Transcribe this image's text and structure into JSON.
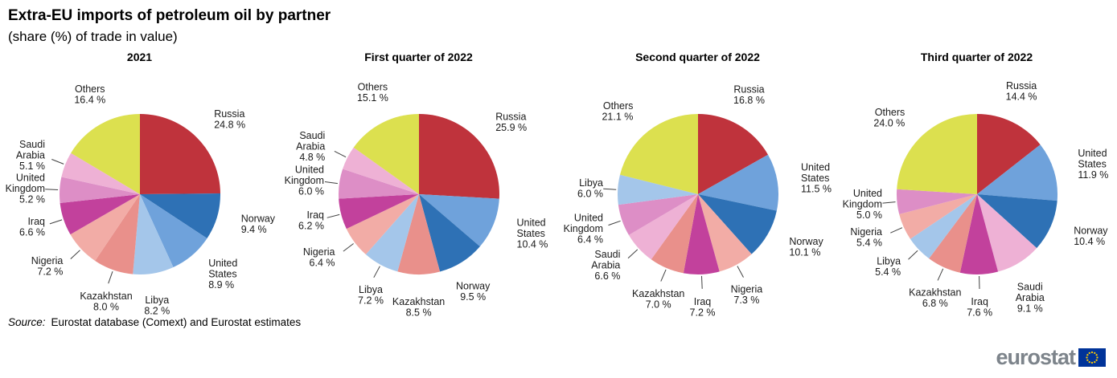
{
  "header": {
    "title": "Extra-EU imports of petroleum oil by partner",
    "subtitle": "(share (%) of trade in value)"
  },
  "footer": {
    "source_label": "Source:",
    "source_text": "Eurostat database (Comext) and Eurostat estimates"
  },
  "logo": {
    "text": "eurostat",
    "flag_blue": "#003399",
    "flag_star_yellow": "#ffcc00",
    "text_color": "#7d848b"
  },
  "colors": {
    "Russia": "#bf333c",
    "Norway": "#2e71b5",
    "United States": "#6fa2db",
    "Libya": "#a4c6ea",
    "Kazakhstan": "#e9908b",
    "Nigeria": "#f2aca6",
    "Iraq": "#c2419c",
    "United Kingdom": "#dd8ec6",
    "Saudi Arabia": "#eeb1d5",
    "Others": "#dce04f"
  },
  "chart_data": [
    {
      "type": "pie",
      "title": "2021",
      "unit": "%",
      "start_angle": "12 o'clock",
      "direction": "clockwise",
      "legend": "none",
      "labels": [
        "Russia",
        "Norway",
        "United States",
        "Libya",
        "Kazakhstan",
        "Nigeria",
        "Iraq",
        "United Kingdom",
        "Saudi Arabia",
        "Others"
      ],
      "values": [
        24.8,
        9.4,
        8.9,
        8.2,
        8.0,
        7.2,
        6.6,
        5.2,
        5.1,
        16.4
      ]
    },
    {
      "type": "pie",
      "title": "First quarter of 2022",
      "unit": "%",
      "start_angle": "12 o'clock",
      "direction": "clockwise",
      "legend": "none",
      "labels": [
        "Russia",
        "United States",
        "Norway",
        "Kazakhstan",
        "Libya",
        "Nigeria",
        "Iraq",
        "United Kingdom",
        "Saudi Arabia",
        "Others"
      ],
      "values": [
        25.9,
        10.4,
        9.5,
        8.5,
        7.2,
        6.4,
        6.2,
        6.0,
        4.8,
        15.1
      ]
    },
    {
      "type": "pie",
      "title": "Second quarter of 2022",
      "unit": "%",
      "start_angle": "12 o'clock",
      "direction": "clockwise",
      "legend": "none",
      "labels": [
        "Russia",
        "United States",
        "Norway",
        "Nigeria",
        "Iraq",
        "Kazakhstan",
        "Saudi Arabia",
        "United Kingdom",
        "Libya",
        "Others"
      ],
      "values": [
        16.8,
        11.5,
        10.1,
        7.3,
        7.2,
        7.0,
        6.6,
        6.4,
        6.0,
        21.1
      ]
    },
    {
      "type": "pie",
      "title": "Third quarter of 2022",
      "unit": "%",
      "start_angle": "12 o'clock",
      "direction": "clockwise",
      "legend": "none",
      "labels": [
        "Russia",
        "United States",
        "Norway",
        "Saudi Arabia",
        "Iraq",
        "Kazakhstan",
        "Libya",
        "Nigeria",
        "United Kingdom",
        "Others"
      ],
      "values": [
        14.4,
        11.9,
        10.4,
        9.1,
        7.6,
        6.8,
        5.4,
        5.4,
        5.0,
        24.0
      ]
    }
  ]
}
